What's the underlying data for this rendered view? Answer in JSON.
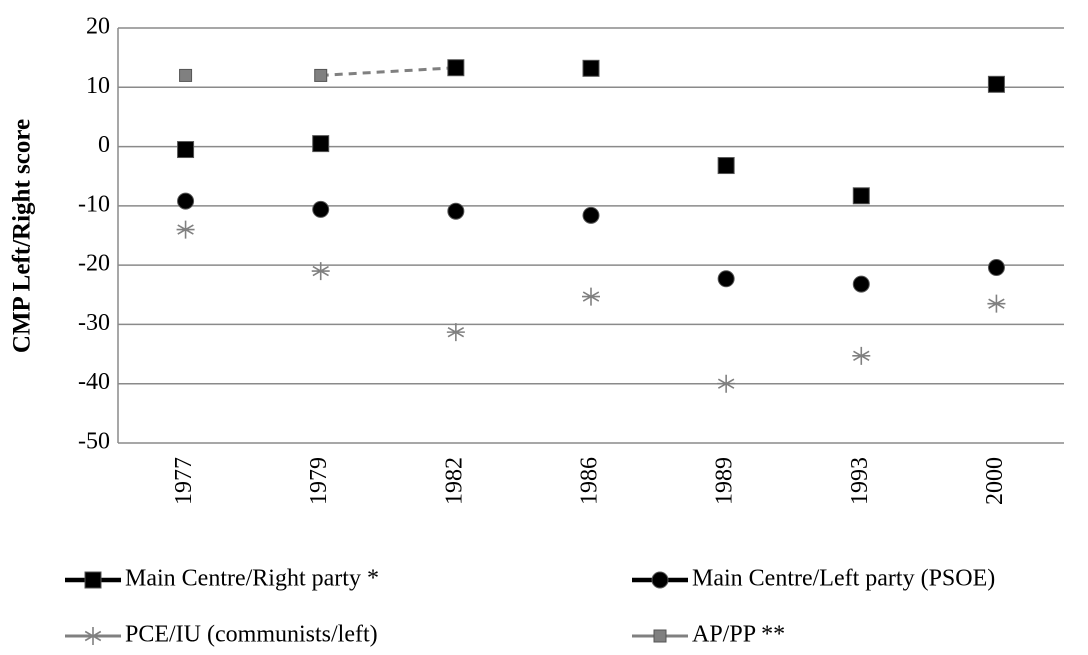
{
  "chart_data": {
    "type": "line",
    "y_label": "CMP Left/Right score",
    "categories": [
      "1977",
      "1979",
      "1982",
      "1986",
      "1989",
      "1993",
      "2000"
    ],
    "ylim": [
      -50,
      20
    ],
    "yticks": [
      -50,
      -40,
      -30,
      -20,
      -10,
      0,
      10,
      20
    ],
    "grid": true,
    "series": [
      {
        "name": "AP/PP  **",
        "color": "#808080",
        "marker": "square",
        "width": 3,
        "dashed_after": 1,
        "values": [
          12,
          12,
          13.3,
          null,
          null,
          null,
          null
        ]
      },
      {
        "name": "PCE/IU (communists/left)",
        "color": "#808080",
        "marker": "star",
        "width": 3,
        "values": [
          -14,
          -21,
          -31.3,
          -25.3,
          -40,
          -35.3,
          -26.5
        ]
      },
      {
        "name": "Main Centre/Left party (PSOE)",
        "color": "#000000",
        "marker": "circle",
        "width": 4.5,
        "values": [
          -9.2,
          -10.6,
          -10.9,
          -11.6,
          -22.3,
          -23.2,
          -20.4
        ]
      },
      {
        "name": "Main Centre/Right party *",
        "color": "#000000",
        "marker": "bigsquare",
        "width": 4.5,
        "values": [
          -0.5,
          0.5,
          13.3,
          13.2,
          -3.2,
          -8.3,
          10.5
        ]
      }
    ],
    "legend_order": [
      3,
      2,
      1,
      0
    ]
  }
}
